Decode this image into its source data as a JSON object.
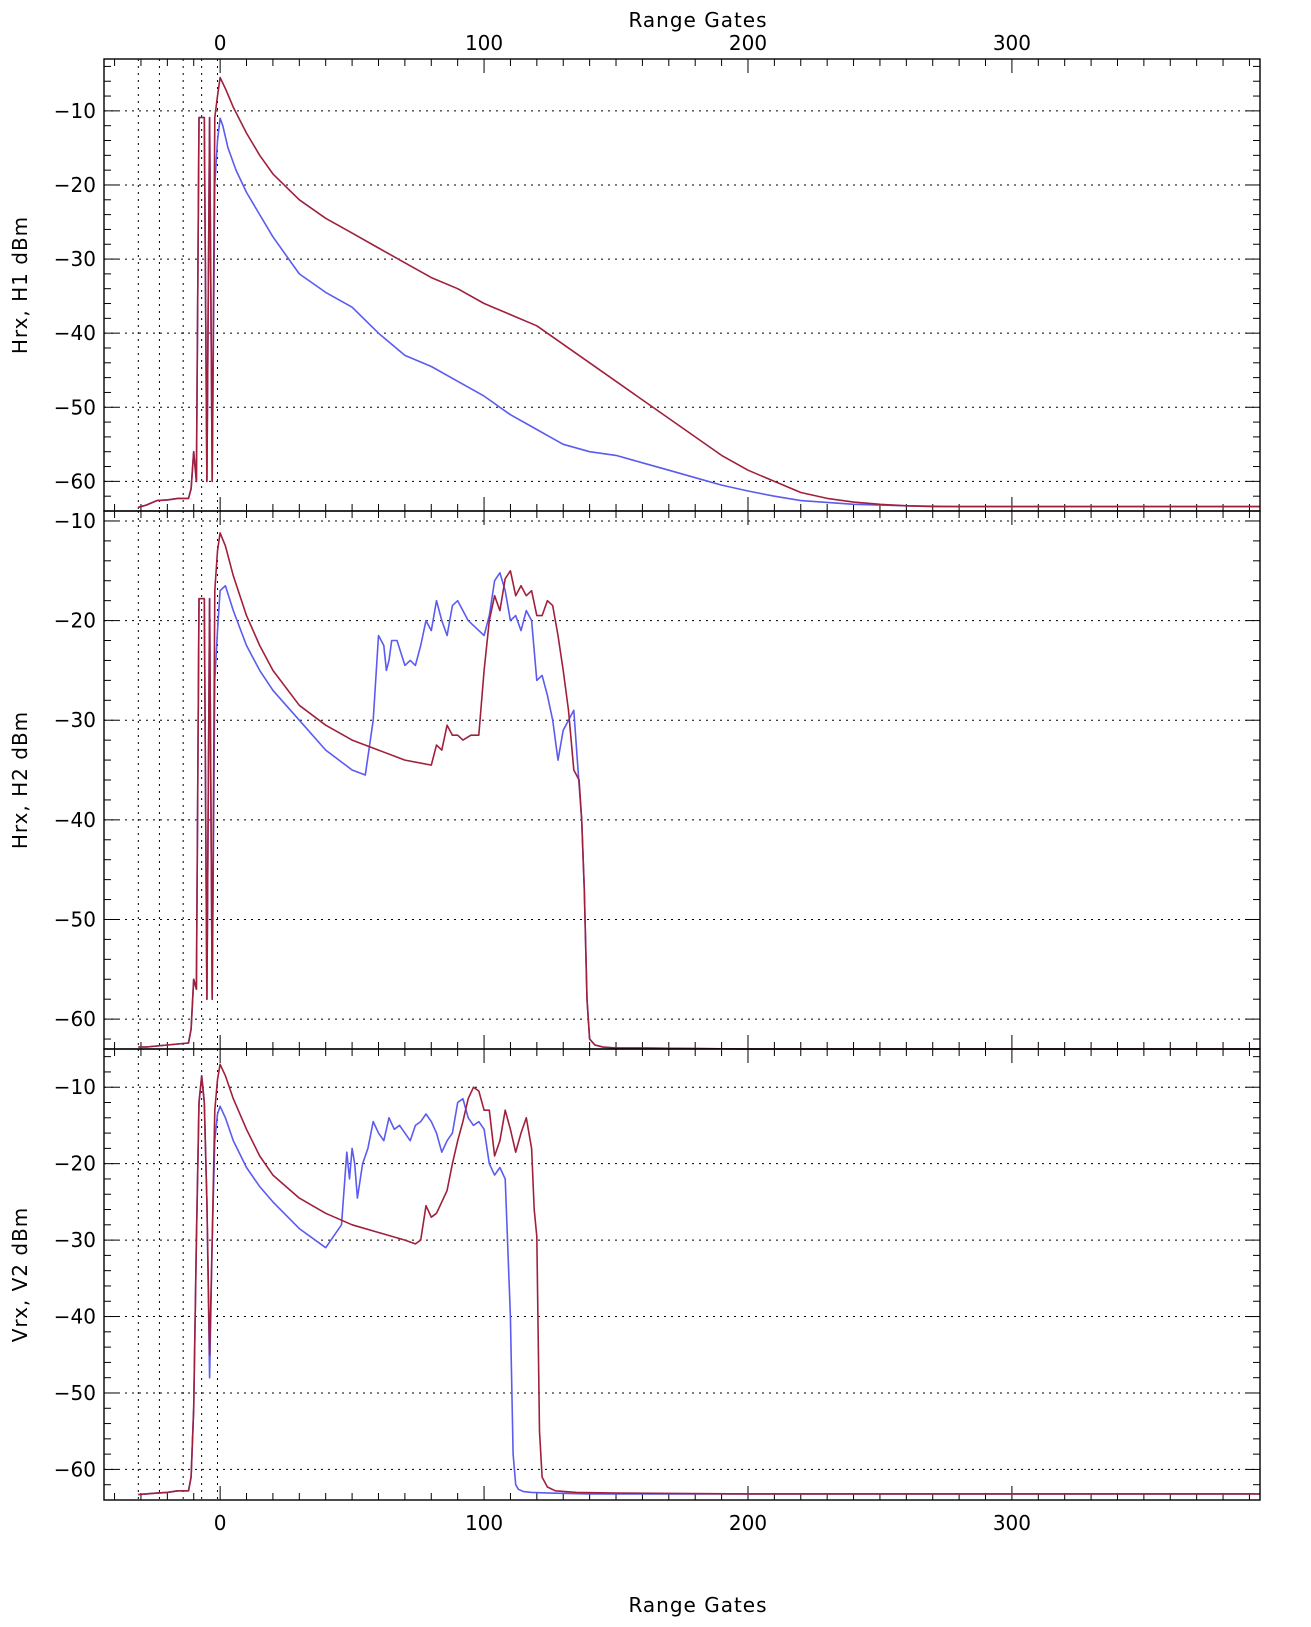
{
  "figure": {
    "top_axis_title": "Range Gates",
    "bottom_axis_title": "Range Gates",
    "x_tick_labels": [
      "0",
      "100",
      "200",
      "300"
    ],
    "colors": {
      "series_a": "#5b5bf0",
      "series_b": "#a0203c",
      "grid": "#000000"
    }
  },
  "chart_data": [
    {
      "type": "line",
      "ylabel": "Hrx, H1 dBm",
      "xlim": [
        -44,
        394
      ],
      "ylim": [
        -64,
        -3
      ],
      "yticks": [
        -10,
        -20,
        -30,
        -40,
        -50,
        -60
      ],
      "ytick_labels": [
        "−10",
        "−20",
        "−30",
        "−40",
        "−50",
        "−60"
      ],
      "xticks": [
        0,
        100,
        200,
        300
      ],
      "grid": true,
      "vertical_dotted_lines": [
        -31,
        -23,
        -14,
        -7,
        -1
      ],
      "series": [
        {
          "color": "#5b5bf0",
          "x": [
            -31,
            -28,
            -24,
            -20,
            -16,
            -12,
            -11,
            -10,
            -9,
            -8,
            -7,
            -6,
            -5,
            -4,
            -3,
            -2,
            -1,
            0,
            1,
            3,
            6,
            10,
            15,
            20,
            30,
            40,
            50,
            60,
            70,
            80,
            90,
            100,
            110,
            120,
            125,
            130,
            140,
            150,
            160,
            170,
            180,
            190,
            200,
            210,
            220,
            240,
            260,
            280,
            300,
            350,
            394
          ],
          "y": [
            -63.5,
            -63.2,
            -62.6,
            -62.5,
            -62.3,
            -62.3,
            -61,
            -56,
            -60,
            -10.9,
            -10.9,
            -10.9,
            -60,
            -10.9,
            -60,
            -20,
            -14,
            -11,
            -12,
            -15,
            -18,
            -21,
            -24,
            -27,
            -32,
            -34.5,
            -36.5,
            -40,
            -43,
            -44.5,
            -46.5,
            -48.5,
            -51,
            -53,
            -54,
            -55,
            -56,
            -56.5,
            -57.5,
            -58.5,
            -59.5,
            -60.5,
            -61.3,
            -62,
            -62.6,
            -63.1,
            -63.3,
            -63.4,
            -63.4,
            -63.4,
            -63.4
          ]
        },
        {
          "color": "#a0203c",
          "x": [
            -31,
            -28,
            -24,
            -20,
            -16,
            -12,
            -11,
            -10,
            -9,
            -8,
            -7,
            -6,
            -5,
            -4,
            -3,
            -2,
            -1,
            0,
            2,
            5,
            10,
            15,
            20,
            30,
            40,
            50,
            60,
            70,
            80,
            90,
            100,
            110,
            120,
            130,
            140,
            150,
            160,
            170,
            180,
            190,
            200,
            210,
            220,
            230,
            240,
            250,
            260,
            270,
            280,
            300,
            350,
            394
          ],
          "y": [
            -63.5,
            -63.2,
            -62.6,
            -62.5,
            -62.3,
            -62.3,
            -61,
            -56,
            -60,
            -10.9,
            -10.9,
            -10.9,
            -60,
            -10.9,
            -60,
            -10.9,
            -8,
            -5.5,
            -7,
            -9.5,
            -13,
            -16,
            -18.5,
            -22,
            -24.5,
            -26.5,
            -28.5,
            -30.5,
            -32.5,
            -34,
            -36,
            -37.5,
            -39,
            -41.5,
            -44,
            -46.5,
            -49,
            -51.5,
            -54,
            -56.5,
            -58.5,
            -60,
            -61.5,
            -62.3,
            -62.8,
            -63.1,
            -63.3,
            -63.4,
            -63.4,
            -63.4,
            -63.4,
            -63.4
          ]
        }
      ]
    },
    {
      "type": "line",
      "ylabel": "Hrx, H2 dBm",
      "xlim": [
        -44,
        394
      ],
      "ylim": [
        -63,
        -9
      ],
      "yticks": [
        -10,
        -20,
        -30,
        -40,
        -50,
        -60
      ],
      "ytick_labels": [
        "−10",
        "−20",
        "−30",
        "−40",
        "−50",
        "−60"
      ],
      "xticks": [
        0,
        100,
        200,
        300
      ],
      "grid": true,
      "vertical_dotted_lines": [
        -31,
        -23,
        -14,
        -7,
        -1
      ],
      "series": [
        {
          "color": "#5b5bf0",
          "x": [
            -31,
            -28,
            -24,
            -20,
            -16,
            -12,
            -11,
            -10,
            -9,
            -8,
            -7,
            -6,
            -5,
            -4,
            -3,
            -2,
            -1,
            0,
            2,
            5,
            10,
            15,
            20,
            25,
            30,
            40,
            50,
            55,
            58,
            60,
            62,
            63,
            64,
            65,
            67,
            70,
            72,
            74,
            76,
            78,
            80,
            82,
            84,
            86,
            88,
            90,
            92,
            94,
            96,
            98,
            100,
            102,
            104,
            106,
            108,
            110,
            112,
            114,
            116,
            118,
            120,
            122,
            124,
            126,
            128,
            130,
            132,
            134,
            136,
            137,
            138,
            139,
            140,
            142,
            145,
            150,
            160,
            200,
            300,
            394
          ],
          "y": [
            -62.8,
            -62.8,
            -62.7,
            -62.6,
            -62.5,
            -62.4,
            -61,
            -56,
            -57,
            -17.8,
            -17.8,
            -17.8,
            -58,
            -17.8,
            -58,
            -26,
            -21,
            -17,
            -16.5,
            -19,
            -22.5,
            -25,
            -27,
            -28.5,
            -30,
            -33,
            -35,
            -35.5,
            -30,
            -21.5,
            -22.5,
            -25,
            -24,
            -22,
            -22,
            -24.5,
            -24,
            -24.5,
            -22.5,
            -20,
            -21,
            -18,
            -20,
            -21.5,
            -18.5,
            -18,
            -19,
            -20,
            -20.5,
            -21,
            -21.5,
            -19.5,
            -16,
            -15.2,
            -17,
            -20,
            -19.5,
            -21,
            -19,
            -20,
            -26,
            -25.5,
            -27.5,
            -30,
            -34,
            -31,
            -30,
            -29,
            -36.5,
            -40,
            -47,
            -58,
            -62,
            -62.6,
            -62.8,
            -62.9,
            -62.9,
            -63.0,
            -63.0,
            -63.0
          ]
        },
        {
          "color": "#a0203c",
          "x": [
            -31,
            -28,
            -24,
            -20,
            -16,
            -12,
            -11,
            -10,
            -9,
            -8,
            -7,
            -6,
            -5,
            -4,
            -3,
            -2,
            -1,
            0,
            2,
            5,
            10,
            15,
            20,
            30,
            40,
            50,
            60,
            70,
            80,
            82,
            84,
            86,
            88,
            90,
            92,
            95,
            98,
            100,
            102,
            104,
            106,
            108,
            110,
            112,
            114,
            116,
            118,
            120,
            122,
            124,
            126,
            128,
            130,
            132,
            134,
            136,
            137,
            138,
            139,
            140,
            142,
            145,
            150,
            160,
            200,
            300,
            394
          ],
          "y": [
            -62.8,
            -62.8,
            -62.7,
            -62.6,
            -62.5,
            -62.4,
            -61,
            -56,
            -57,
            -17.8,
            -17.8,
            -17.8,
            -58,
            -17.8,
            -58,
            -17,
            -13,
            -11.2,
            -12.5,
            -15.5,
            -19.5,
            -22.5,
            -25,
            -28.5,
            -30.5,
            -32,
            -33,
            -34,
            -34.5,
            -32.5,
            -33,
            -30.5,
            -31.5,
            -31.5,
            -32,
            -31.5,
            -31.5,
            -25,
            -20,
            -17.5,
            -19,
            -15.8,
            -15,
            -17.5,
            -16.5,
            -17.5,
            -17,
            -19.5,
            -19.5,
            -18,
            -18.5,
            -21.5,
            -25,
            -29,
            -35,
            -36,
            -40,
            -47,
            -58,
            -62,
            -62.6,
            -62.8,
            -62.9,
            -62.9,
            -63.0,
            -63.0,
            -63.0
          ]
        }
      ]
    },
    {
      "type": "line",
      "ylabel": "Vrx, V2 dBm",
      "xlim": [
        -44,
        394
      ],
      "ylim": [
        -64,
        -5
      ],
      "yticks": [
        -10,
        -20,
        -30,
        -40,
        -50,
        -60
      ],
      "ytick_labels": [
        "−10",
        "−20",
        "−30",
        "−40",
        "−50",
        "−60"
      ],
      "xticks": [
        0,
        100,
        200,
        300
      ],
      "grid": true,
      "vertical_dotted_lines": [
        -31,
        -23,
        -14,
        -7,
        -1
      ],
      "series": [
        {
          "color": "#5b5bf0",
          "x": [
            -31,
            -28,
            -24,
            -20,
            -16,
            -12,
            -11,
            -10,
            -9,
            -8,
            -7,
            -6,
            -5,
            -4,
            -3,
            -2,
            -1,
            0,
            2,
            5,
            10,
            15,
            20,
            30,
            40,
            46,
            48,
            49,
            50,
            51,
            52,
            54,
            56,
            58,
            60,
            62,
            64,
            66,
            68,
            70,
            72,
            74,
            76,
            78,
            80,
            82,
            84,
            86,
            88,
            90,
            92,
            94,
            96,
            98,
            100,
            102,
            104,
            106,
            108,
            110,
            111,
            112,
            113,
            115,
            118,
            125,
            140,
            200,
            300,
            394
          ],
          "y": [
            -63.3,
            -63.2,
            -63.1,
            -63.0,
            -62.8,
            -62.8,
            -61,
            -52,
            -30,
            -12,
            -8.5,
            -12,
            -25,
            -48,
            -30,
            -17,
            -13.5,
            -12.5,
            -14,
            -17,
            -20.5,
            -23,
            -25,
            -28.5,
            -31,
            -28,
            -18.5,
            -22,
            -18,
            -20,
            -24.5,
            -20,
            -18,
            -14.5,
            -16,
            -17,
            -14,
            -15.5,
            -15,
            -16,
            -17,
            -15,
            -14.5,
            -13.5,
            -14.5,
            -16,
            -18.5,
            -17,
            -16,
            -12,
            -11.5,
            -14,
            -15,
            -14.5,
            -15.5,
            -20,
            -21.5,
            -20.5,
            -22,
            -40,
            -58,
            -62,
            -62.6,
            -62.9,
            -63.0,
            -63.1,
            -63.2,
            -63.2,
            -63.2,
            -63.2
          ]
        },
        {
          "color": "#a0203c",
          "x": [
            -31,
            -28,
            -24,
            -20,
            -16,
            -12,
            -11,
            -10,
            -9,
            -8,
            -7,
            -6,
            -5,
            -4,
            -3,
            -2,
            -1,
            0,
            2,
            5,
            10,
            15,
            20,
            30,
            40,
            50,
            60,
            70,
            74,
            76,
            78,
            80,
            82,
            84,
            86,
            88,
            90,
            92,
            94,
            96,
            98,
            100,
            102,
            104,
            106,
            108,
            110,
            112,
            114,
            116,
            118,
            119,
            120,
            121,
            122,
            124,
            127,
            135,
            150,
            200,
            300,
            394
          ],
          "y": [
            -63.3,
            -63.2,
            -63.1,
            -63.0,
            -62.8,
            -62.8,
            -61,
            -52,
            -30,
            -12,
            -8.5,
            -12,
            -25,
            -45,
            -30,
            -13,
            -9,
            -7,
            -8.5,
            -11.5,
            -15.5,
            -19,
            -21.5,
            -24.5,
            -26.5,
            -28,
            -29,
            -30,
            -30.5,
            -30,
            -25.5,
            -27,
            -26.5,
            -25,
            -23.5,
            -20,
            -17,
            -14.5,
            -11.5,
            -10,
            -10.5,
            -13,
            -13,
            -19,
            -17,
            -13,
            -15.5,
            -18.5,
            -16,
            -14,
            -18,
            -26,
            -29.5,
            -55,
            -61,
            -62.3,
            -62.8,
            -63.0,
            -63.1,
            -63.2,
            -63.2,
            -63.2
          ]
        }
      ]
    }
  ]
}
